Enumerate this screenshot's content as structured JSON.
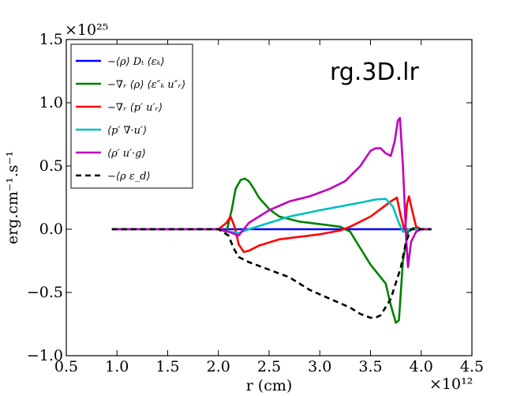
{
  "chart_data": {
    "type": "line",
    "title": "",
    "annotation": "rg.3D.lr",
    "xlabel": "r (cm)",
    "ylabel": "erg.cm⁻¹.s⁻¹",
    "x_multiplier": "×10¹²",
    "y_multiplier": "×10²⁵",
    "xlim": [
      0.5,
      4.5
    ],
    "ylim": [
      -1.0,
      1.5
    ],
    "xticks": [
      0.5,
      1.0,
      1.5,
      2.0,
      2.5,
      3.0,
      3.5,
      4.0,
      4.5
    ],
    "xtick_labels": [
      "0.5",
      "1.0",
      "1.5",
      "2.0",
      "2.5",
      "3.0",
      "3.5",
      "4.0",
      "4.5"
    ],
    "yticks": [
      -1.0,
      -0.5,
      0.0,
      0.5,
      1.0,
      1.5
    ],
    "ytick_labels": [
      "−1.0",
      "−0.5",
      "0.0",
      "0.5",
      "1.0",
      "1.5"
    ],
    "grid": false,
    "legend_position": "top-left",
    "series": [
      {
        "name": "−⟨ρ⟩ Dₜ ⟨εₖ⟩",
        "color": "#0000ff",
        "dash": "solid",
        "x": [
          0.95,
          1.5,
          2.0,
          2.5,
          3.0,
          3.5,
          3.8,
          4.0,
          4.1
        ],
        "y": [
          0,
          0,
          0,
          0,
          0,
          0,
          0,
          0,
          0
        ]
      },
      {
        "name": "−∇ᵣ ⟨ρ⟩ ⟨ε″ₖ u″ᵣ⟩",
        "color": "#008000",
        "dash": "solid",
        "x": [
          0.95,
          2.0,
          2.08,
          2.13,
          2.17,
          2.22,
          2.26,
          2.3,
          2.35,
          2.4,
          2.5,
          2.6,
          2.8,
          3.0,
          3.2,
          3.3,
          3.4,
          3.5,
          3.6,
          3.65,
          3.7,
          3.75,
          3.78,
          3.82,
          3.87,
          3.92,
          4.0,
          4.1
        ],
        "y": [
          0,
          0,
          -0.02,
          0.15,
          0.32,
          0.39,
          0.4,
          0.38,
          0.32,
          0.25,
          0.16,
          0.1,
          0.06,
          0.04,
          0.02,
          -0.02,
          -0.15,
          -0.28,
          -0.38,
          -0.43,
          -0.6,
          -0.74,
          -0.72,
          -0.25,
          -0.02,
          0.01,
          0.0,
          0.0
        ]
      },
      {
        "name": "−∇ᵣ ⟨p′ u′ᵣ⟩",
        "color": "#ff0000",
        "dash": "solid",
        "x": [
          0.95,
          2.0,
          2.08,
          2.12,
          2.16,
          2.2,
          2.25,
          2.3,
          2.4,
          2.6,
          2.8,
          3.0,
          3.2,
          3.3,
          3.4,
          3.5,
          3.6,
          3.7,
          3.76,
          3.8,
          3.84,
          3.86,
          3.88,
          3.91,
          3.95,
          4.0,
          4.1
        ],
        "y": [
          0,
          0,
          0.05,
          0.1,
          0.02,
          -0.12,
          -0.18,
          -0.17,
          -0.13,
          -0.08,
          -0.06,
          -0.04,
          -0.01,
          0.02,
          0.06,
          0.1,
          0.16,
          0.22,
          0.25,
          0.1,
          -0.02,
          0.2,
          0.26,
          0.15,
          0.02,
          0.0,
          0.0
        ]
      },
      {
        "name": "⟨p′ ∇·u′⟩",
        "color": "#00bfbf",
        "dash": "solid",
        "x": [
          0.95,
          2.0,
          2.1,
          2.2,
          2.3,
          2.5,
          2.7,
          3.0,
          3.2,
          3.4,
          3.55,
          3.65,
          3.72,
          3.78,
          3.82,
          3.88,
          4.0,
          4.1
        ],
        "y": [
          0,
          0,
          -0.02,
          -0.03,
          0.0,
          0.05,
          0.1,
          0.15,
          0.18,
          0.21,
          0.235,
          0.24,
          0.18,
          0.05,
          -0.02,
          0.0,
          0.0,
          0.0
        ]
      },
      {
        "name": "⟨ρ′ u′·g⟩",
        "color": "#bf00bf",
        "dash": "solid",
        "x": [
          0.95,
          2.0,
          2.1,
          2.2,
          2.3,
          2.5,
          2.7,
          2.9,
          3.1,
          3.25,
          3.4,
          3.5,
          3.55,
          3.6,
          3.65,
          3.7,
          3.74,
          3.77,
          3.79,
          3.82,
          3.85,
          3.87,
          3.9,
          3.95,
          4.0,
          4.1
        ],
        "y": [
          0,
          0,
          -0.02,
          -0.05,
          0.05,
          0.15,
          0.22,
          0.26,
          0.32,
          0.38,
          0.5,
          0.62,
          0.64,
          0.64,
          0.6,
          0.58,
          0.7,
          0.86,
          0.88,
          0.5,
          -0.05,
          -0.3,
          -0.1,
          -0.02,
          0.0,
          0.0
        ]
      },
      {
        "name": "−⟨ρ ε_d⟩",
        "color": "#000000",
        "dash": "dashed",
        "x": [
          0.95,
          2.0,
          2.1,
          2.15,
          2.2,
          2.3,
          2.5,
          2.7,
          2.9,
          3.1,
          3.3,
          3.4,
          3.5,
          3.55,
          3.6,
          3.7,
          3.8,
          3.85,
          3.9,
          4.0,
          4.1
        ],
        "y": [
          0,
          0,
          -0.05,
          -0.15,
          -0.22,
          -0.26,
          -0.32,
          -0.38,
          -0.48,
          -0.55,
          -0.62,
          -0.67,
          -0.7,
          -0.7,
          -0.68,
          -0.55,
          -0.3,
          -0.1,
          0.0,
          0.0,
          0.0
        ]
      }
    ]
  }
}
